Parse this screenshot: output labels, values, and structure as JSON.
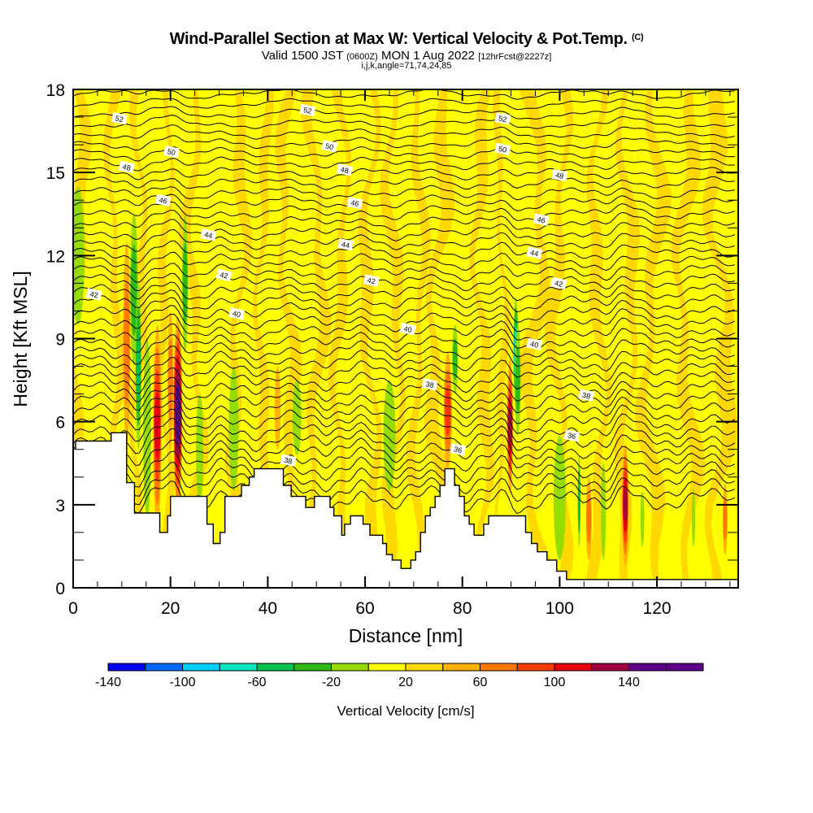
{
  "titles": {
    "main": "Wind-Parallel Section at Max W: Vertical Velocity & Pot.Temp.",
    "copyright": "(C)",
    "valid_prefix": "Valid 1500 JST",
    "valid_utc": "(0600Z)",
    "valid_date": "MON 1 Aug 2022",
    "forecast": "[12hrFcst@2227z]",
    "indices": "i,j,k,angle=71,74,24,85"
  },
  "chart_data": {
    "type": "heatmap",
    "title": "Wind-Parallel Section at Max W: Vertical Velocity & Pot.Temp.",
    "xlabel": "Distance [nm]",
    "ylabel": "Height [Kft MSL]",
    "xlim": [
      0,
      136.7
    ],
    "ylim": [
      0,
      18
    ],
    "x_ticks": [
      0,
      20,
      40,
      60,
      80,
      100,
      120
    ],
    "x_minor_step": 5,
    "y_ticks": [
      0,
      3,
      6,
      9,
      12,
      15,
      18
    ],
    "y_minor_step": 1,
    "colorbar": {
      "label": "Vertical Velocity [cm/s]",
      "bounds": [
        -160,
        -140,
        -120,
        -100,
        -80,
        -60,
        -40,
        -20,
        0,
        20,
        40,
        60,
        80,
        100,
        120,
        140,
        160
      ],
      "tick_labels": [
        "-140",
        "-100",
        "-60",
        "-20",
        "20",
        "60",
        "100",
        "140"
      ],
      "colors": [
        "#0000f5",
        "#0068ff",
        "#00d0ff",
        "#00e8c0",
        "#00c050",
        "#2db814",
        "#96dc00",
        "#ffff00",
        "#ffd800",
        "#ffb000",
        "#ff7800",
        "#ff3c00",
        "#e80010",
        "#a00040",
        "#600088",
        "#600088"
      ],
      "placement": "bottom"
    },
    "background_field": {
      "description": "Alternating weak up/down bands (-20..20 cm/s)",
      "bands": [
        {
          "x": 1,
          "w": 2.5,
          "v": 10
        },
        {
          "x": 5,
          "w": 2.5,
          "v": -10
        },
        {
          "x": 8.5,
          "w": 2,
          "v": 10
        },
        {
          "x": 13.5,
          "w": 2,
          "v": 10
        },
        {
          "x": 19,
          "w": 1.8,
          "v": 10
        },
        {
          "x": 25,
          "w": 2.5,
          "v": 10
        },
        {
          "x": 30,
          "w": 2,
          "v": -10
        },
        {
          "x": 34,
          "w": 2.5,
          "v": 10
        },
        {
          "x": 39,
          "w": 2,
          "v": 10
        },
        {
          "x": 44,
          "w": 2.5,
          "v": 10
        },
        {
          "x": 50,
          "w": 2.5,
          "v": 10
        },
        {
          "x": 55,
          "w": 2.2,
          "v": 10
        },
        {
          "x": 61,
          "w": 2.5,
          "v": 10
        },
        {
          "x": 66,
          "w": 2.5,
          "v": 10
        },
        {
          "x": 71,
          "w": 2,
          "v": 10
        },
        {
          "x": 75,
          "w": 3,
          "v": 10
        },
        {
          "x": 84,
          "w": 2.5,
          "v": 10
        },
        {
          "x": 88,
          "w": 1.5,
          "v": 10
        },
        {
          "x": 95,
          "w": 3,
          "v": 10
        },
        {
          "x": 100,
          "w": 2.5,
          "v": 10
        },
        {
          "x": 108,
          "w": 2.5,
          "v": 10
        },
        {
          "x": 114,
          "w": 2.5,
          "v": 10
        },
        {
          "x": 119,
          "w": 3,
          "v": 10
        },
        {
          "x": 126,
          "w": 3,
          "v": 10
        },
        {
          "x": 133,
          "w": 3.5,
          "v": 10
        }
      ]
    },
    "cells": [
      {
        "x": 1.0,
        "y0": 9.5,
        "y1": 14.5,
        "w": 2.6,
        "v": -30
      },
      {
        "x": 11.0,
        "y0": 5.2,
        "y1": 12.5,
        "w": 1.5,
        "v": 55
      },
      {
        "x": 12.5,
        "y0": 8.0,
        "y1": 13.5,
        "w": 1.6,
        "v": -45
      },
      {
        "x": 13.4,
        "y0": 5.0,
        "y1": 11.0,
        "w": 1.2,
        "v": -70
      },
      {
        "x": 17.3,
        "y0": 2.2,
        "y1": 9.5,
        "w": 1.7,
        "v": 85
      },
      {
        "x": 15.2,
        "y0": 2.5,
        "y1": 9.0,
        "w": 1.6,
        "v": -35
      },
      {
        "x": 21.5,
        "y0": 2.8,
        "y1": 9.8,
        "w": 1.8,
        "v": 150
      },
      {
        "x": 20.0,
        "y0": 5.0,
        "y1": 10.0,
        "w": 1.2,
        "v": 50
      },
      {
        "x": 23.0,
        "y0": 8.5,
        "y1": 13.5,
        "w": 1.2,
        "v": -45
      },
      {
        "x": 26.0,
        "y0": 3.0,
        "y1": 7.0,
        "w": 1.5,
        "v": -30
      },
      {
        "x": 33.0,
        "y0": 3.5,
        "y1": 8.0,
        "w": 2.0,
        "v": -25
      },
      {
        "x": 42.0,
        "y0": 5.0,
        "y1": 8.0,
        "w": 1.2,
        "v": 30
      },
      {
        "x": 46.0,
        "y0": 4.8,
        "y1": 7.5,
        "w": 1.8,
        "v": -30
      },
      {
        "x": 65.0,
        "y0": 3.5,
        "y1": 7.5,
        "w": 2.5,
        "v": -30
      },
      {
        "x": 77.0,
        "y0": 4.3,
        "y1": 8.5,
        "w": 1.7,
        "v": 70
      },
      {
        "x": 78.5,
        "y0": 7.0,
        "y1": 9.5,
        "w": 1.2,
        "v": -55
      },
      {
        "x": 89.8,
        "y0": 3.4,
        "y1": 8.3,
        "w": 1.2,
        "v": 110
      },
      {
        "x": 91.0,
        "y0": 6.5,
        "y1": 10.5,
        "w": 1.0,
        "v": -110
      },
      {
        "x": 91.4,
        "y0": 5.5,
        "y1": 9.5,
        "w": 1.2,
        "v": -50
      },
      {
        "x": 100.0,
        "y0": 1.0,
        "y1": 5.5,
        "w": 2.5,
        "v": -35
      },
      {
        "x": 104.0,
        "y0": 1.5,
        "y1": 4.8,
        "w": 0.6,
        "v": -70
      },
      {
        "x": 106.0,
        "y0": 1.0,
        "y1": 4.0,
        "w": 1.2,
        "v": 50
      },
      {
        "x": 109.0,
        "y0": 1.0,
        "y1": 4.5,
        "w": 1.0,
        "v": -25
      },
      {
        "x": 113.5,
        "y0": 0.8,
        "y1": 5.2,
        "w": 1.3,
        "v": 100
      },
      {
        "x": 117.0,
        "y0": 1.5,
        "y1": 3.5,
        "w": 0.8,
        "v": -25
      },
      {
        "x": 134.0,
        "y0": 1.2,
        "y1": 3.8,
        "w": 1.0,
        "v": 40
      },
      {
        "x": 127.5,
        "y0": 1.5,
        "y1": 3.6,
        "w": 0.7,
        "v": -25
      }
    ],
    "terrain": [
      [
        0,
        5.05
      ],
      [
        0.5,
        5.05
      ],
      [
        0.5,
        5.3
      ],
      [
        7.8,
        5.3
      ],
      [
        7.8,
        5.6
      ],
      [
        11,
        5.6
      ],
      [
        11,
        3.8
      ],
      [
        12.6,
        3.8
      ],
      [
        12.6,
        2.7
      ],
      [
        17.8,
        2.7
      ],
      [
        17.8,
        2.0
      ],
      [
        19.4,
        2.0
      ],
      [
        19.4,
        2.6
      ],
      [
        20,
        2.6
      ],
      [
        20,
        3.3
      ],
      [
        27.5,
        3.3
      ],
      [
        27.5,
        2.3
      ],
      [
        28.8,
        2.3
      ],
      [
        28.8,
        1.6
      ],
      [
        30.2,
        1.6
      ],
      [
        30.2,
        2.0
      ],
      [
        31.2,
        2.0
      ],
      [
        31.2,
        3.3
      ],
      [
        34.6,
        3.3
      ],
      [
        34.6,
        3.7
      ],
      [
        36.2,
        3.7
      ],
      [
        36.2,
        4.0
      ],
      [
        37.2,
        4.0
      ],
      [
        37.2,
        4.3
      ],
      [
        43.2,
        4.3
      ],
      [
        43.2,
        3.7
      ],
      [
        44.8,
        3.7
      ],
      [
        44.8,
        3.3
      ],
      [
        47.8,
        3.3
      ],
      [
        47.8,
        2.9
      ],
      [
        49.6,
        2.9
      ],
      [
        49.6,
        3.3
      ],
      [
        52.8,
        3.3
      ],
      [
        52.8,
        2.9
      ],
      [
        53.6,
        2.9
      ],
      [
        53.6,
        2.6
      ],
      [
        55.2,
        2.6
      ],
      [
        55.2,
        1.9
      ],
      [
        55.8,
        1.9
      ],
      [
        55.8,
        2.3
      ],
      [
        57,
        2.3
      ],
      [
        57,
        2.6
      ],
      [
        59.6,
        2.6
      ],
      [
        59.6,
        2.3
      ],
      [
        61,
        2.3
      ],
      [
        61,
        1.9
      ],
      [
        63.6,
        1.9
      ],
      [
        63.6,
        1.6
      ],
      [
        64.4,
        1.6
      ],
      [
        64.4,
        1.2
      ],
      [
        65.6,
        1.2
      ],
      [
        65.6,
        1.0
      ],
      [
        67.4,
        1.0
      ],
      [
        67.4,
        0.7
      ],
      [
        69.4,
        0.7
      ],
      [
        69.4,
        1.0
      ],
      [
        70.4,
        1.0
      ],
      [
        70.4,
        1.3
      ],
      [
        71.4,
        1.3
      ],
      [
        71.4,
        2.0
      ],
      [
        72.4,
        2.0
      ],
      [
        72.4,
        2.6
      ],
      [
        73.4,
        2.6
      ],
      [
        73.4,
        2.9
      ],
      [
        74.4,
        2.9
      ],
      [
        74.4,
        3.3
      ],
      [
        75.4,
        3.3
      ],
      [
        75.4,
        3.7
      ],
      [
        76.4,
        3.7
      ],
      [
        76.4,
        4.3
      ],
      [
        78.4,
        4.3
      ],
      [
        78.4,
        3.7
      ],
      [
        79.4,
        3.7
      ],
      [
        79.4,
        3.3
      ],
      [
        80.4,
        3.3
      ],
      [
        80.4,
        2.6
      ],
      [
        81.4,
        2.6
      ],
      [
        81.4,
        2.3
      ],
      [
        82.4,
        2.3
      ],
      [
        82.4,
        1.9
      ],
      [
        84.4,
        1.9
      ],
      [
        84.4,
        2.3
      ],
      [
        85.4,
        2.3
      ],
      [
        85.4,
        2.6
      ],
      [
        89.4,
        2.6
      ],
      [
        89.4,
        2.6
      ],
      [
        93.0,
        2.6
      ],
      [
        93.0,
        2.0
      ],
      [
        94.2,
        2.0
      ],
      [
        94.2,
        1.6
      ],
      [
        95.4,
        1.6
      ],
      [
        95.4,
        1.3
      ],
      [
        97.4,
        1.3
      ],
      [
        97.4,
        1.0
      ],
      [
        99.4,
        1.0
      ],
      [
        99.4,
        0.6
      ],
      [
        101.4,
        0.6
      ],
      [
        101.4,
        0.3
      ],
      [
        136.7,
        0.3
      ],
      [
        136.7,
        0
      ],
      [
        0,
        0
      ]
    ],
    "contours": {
      "field": "Potential Temperature",
      "units": "C",
      "levels": [
        36,
        38,
        40,
        42,
        44,
        46,
        48,
        50,
        52
      ],
      "labels": [
        {
          "text": "52",
          "x": 9.5,
          "y": 16.95
        },
        {
          "text": "50",
          "x": 20.2,
          "y": 15.75
        },
        {
          "text": "48",
          "x": 11.0,
          "y": 15.2
        },
        {
          "text": "46",
          "x": 18.5,
          "y": 14.0
        },
        {
          "text": "44",
          "x": 27.8,
          "y": 12.75
        },
        {
          "text": "42",
          "x": 4.3,
          "y": 10.6
        },
        {
          "text": "42",
          "x": 31.0,
          "y": 11.3
        },
        {
          "text": "40",
          "x": 33.6,
          "y": 9.9
        },
        {
          "text": "52",
          "x": 48.2,
          "y": 17.25
        },
        {
          "text": "50",
          "x": 52.7,
          "y": 15.95
        },
        {
          "text": "48",
          "x": 55.8,
          "y": 15.1
        },
        {
          "text": "46",
          "x": 57.9,
          "y": 13.9
        },
        {
          "text": "44",
          "x": 56.0,
          "y": 12.4
        },
        {
          "text": "42",
          "x": 61.3,
          "y": 11.1
        },
        {
          "text": "40",
          "x": 68.8,
          "y": 9.35
        },
        {
          "text": "38",
          "x": 73.3,
          "y": 7.35
        },
        {
          "text": "38",
          "x": 44.2,
          "y": 4.6
        },
        {
          "text": "36",
          "x": 79.1,
          "y": 5.0
        },
        {
          "text": "52",
          "x": 88.3,
          "y": 16.95
        },
        {
          "text": "50",
          "x": 88.3,
          "y": 15.85
        },
        {
          "text": "48",
          "x": 100.0,
          "y": 14.9
        },
        {
          "text": "46",
          "x": 96.2,
          "y": 13.3
        },
        {
          "text": "44",
          "x": 94.8,
          "y": 12.1
        },
        {
          "text": "42",
          "x": 99.8,
          "y": 11.0
        },
        {
          "text": "40",
          "x": 94.8,
          "y": 8.8
        },
        {
          "text": "38",
          "x": 105.5,
          "y": 6.95
        },
        {
          "text": "36",
          "x": 102.5,
          "y": 5.5
        }
      ],
      "line_count": 42
    }
  }
}
